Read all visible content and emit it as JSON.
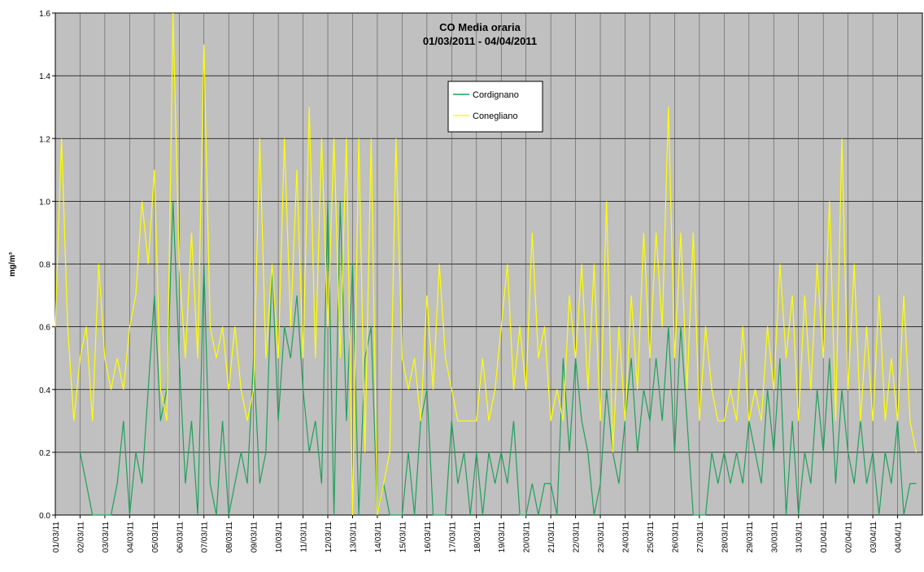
{
  "chart_data": {
    "type": "line",
    "title": "CO Media oraria",
    "subtitle": "01/03/2011 - 04/04/2011",
    "y_label": "mg/m³",
    "ylim": [
      0,
      1.6
    ],
    "yticks": [
      {
        "value": 0,
        "label": "0.0"
      },
      0.2,
      0.4,
      0.6,
      0.8,
      {
        "value": 1,
        "label": "1.0"
      },
      1.2,
      1.4,
      1.6
    ],
    "grid": true,
    "legend": "upper center",
    "background": "#c0c0c0",
    "categories": [
      "01/03/11",
      null,
      null,
      null,
      "02/03/11",
      null,
      null,
      null,
      "03/03/11",
      null,
      null,
      null,
      "04/03/11",
      null,
      null,
      null,
      "05/03/11",
      null,
      null,
      null,
      "06/03/11",
      null,
      null,
      null,
      "07/03/11",
      null,
      null,
      null,
      "08/03/11",
      null,
      null,
      null,
      "09/03/11",
      null,
      null,
      null,
      "10/03/11",
      null,
      null,
      null,
      "11/03/11",
      null,
      null,
      null,
      "12/03/11",
      null,
      null,
      null,
      "13/03/11",
      null,
      null,
      null,
      "14/03/11",
      null,
      null,
      null,
      "15/03/11",
      null,
      null,
      null,
      "16/03/11",
      null,
      null,
      null,
      "17/03/11",
      null,
      null,
      null,
      "18/03/11",
      null,
      null,
      null,
      "19/03/11",
      null,
      null,
      null,
      "20/03/11",
      null,
      null,
      null,
      "21/03/11",
      null,
      null,
      null,
      "22/03/11",
      null,
      null,
      null,
      "23/03/11",
      null,
      null,
      null,
      "24/03/11",
      null,
      null,
      null,
      "25/03/11",
      null,
      null,
      null,
      "26/03/11",
      null,
      null,
      null,
      "27/03/11",
      null,
      null,
      null,
      "28/03/11",
      null,
      null,
      null,
      "29/03/11",
      null,
      null,
      null,
      "30/03/11",
      null,
      null,
      null,
      "31/03/11",
      null,
      null,
      null,
      "01/04/11",
      null,
      null,
      null,
      "02/04/11",
      null,
      null,
      null,
      "03/04/11",
      null,
      null,
      null,
      "04/04/11",
      null,
      null,
      null
    ],
    "series": [
      {
        "name": "Cordignano",
        "color": "#1ea05a",
        "values": [
          null,
          null,
          null,
          null,
          0.2,
          0.1,
          0,
          0,
          0,
          0,
          0.1,
          0.3,
          0,
          0.2,
          0.1,
          0.4,
          0.7,
          0.3,
          0.4,
          1.0,
          0.5,
          0.1,
          0.3,
          0,
          0.8,
          0.1,
          0,
          0.3,
          0,
          0.1,
          0.2,
          0.1,
          0.5,
          0.1,
          0.2,
          0.8,
          0.3,
          0.6,
          0.5,
          0.7,
          0.4,
          0.2,
          0.3,
          0.1,
          1.0,
          0,
          1.0,
          0.3,
          0.8,
          0,
          0.5,
          0.6,
          0,
          0.1,
          0,
          0,
          0,
          0.2,
          0,
          0.3,
          0.4,
          0,
          0,
          0,
          0.3,
          0.1,
          0.2,
          0,
          0.2,
          0,
          0.2,
          0.1,
          0.2,
          0.1,
          0.3,
          0,
          0,
          0.1,
          0,
          0.1,
          0.1,
          0,
          0.5,
          0.2,
          0.5,
          0.3,
          0.2,
          0,
          0.1,
          0.4,
          0.2,
          0.1,
          0.3,
          0.5,
          0.2,
          0.4,
          0.3,
          0.5,
          0.3,
          0.6,
          0.2,
          0.6,
          0.3,
          0,
          0,
          0,
          0.2,
          0.1,
          0.2,
          0.1,
          0.2,
          0.1,
          0.3,
          0.2,
          0.1,
          0.4,
          0.2,
          0.5,
          0,
          0.3,
          0,
          0.2,
          0.1,
          0.4,
          0.2,
          0.5,
          0.1,
          0.4,
          0.2,
          0.1,
          0.3,
          0.1,
          0.2,
          0,
          0.2,
          0.1,
          0.3,
          0,
          0.1,
          0.1
        ]
      },
      {
        "name": "Conegliano",
        "color": "#ffff00",
        "values": [
          0.6,
          1.2,
          0.6,
          0.3,
          0.5,
          0.6,
          0.3,
          0.8,
          0.5,
          0.4,
          0.5,
          0.4,
          0.6,
          0.7,
          1.0,
          0.8,
          1.1,
          0.4,
          0.3,
          1.6,
          0.8,
          0.5,
          0.9,
          0.5,
          1.5,
          0.6,
          0.5,
          0.6,
          0.4,
          0.6,
          0.4,
          0.3,
          0.4,
          1.2,
          0.5,
          0.8,
          0.5,
          1.2,
          0.6,
          1.1,
          0.5,
          1.3,
          0.5,
          1.2,
          0.6,
          1.2,
          0.5,
          1.2,
          0,
          1.2,
          0.2,
          1.2,
          0,
          0.1,
          0.2,
          1.2,
          0.5,
          0.4,
          0.5,
          0.3,
          0.7,
          0.4,
          0.8,
          0.5,
          0.4,
          0.3,
          0.3,
          0.3,
          0.3,
          0.5,
          0.3,
          0.4,
          0.6,
          0.8,
          0.4,
          0.6,
          0.4,
          0.9,
          0.5,
          0.6,
          0.3,
          0.4,
          0.3,
          0.7,
          0.5,
          0.8,
          0.4,
          0.8,
          0.3,
          1.0,
          0.2,
          0.6,
          0.3,
          0.7,
          0.4,
          0.9,
          0.5,
          0.9,
          0.6,
          1.3,
          0.5,
          0.9,
          0.4,
          0.9,
          0.3,
          0.6,
          0.4,
          0.3,
          0.3,
          0.4,
          0.3,
          0.6,
          0.3,
          0.4,
          0.3,
          0.6,
          0.4,
          0.8,
          0.5,
          0.7,
          0.3,
          0.7,
          0.4,
          0.8,
          0.5,
          1.0,
          0.3,
          1.2,
          0.4,
          0.8,
          0.3,
          0.6,
          0.3,
          0.7,
          0.3,
          0.5,
          0.3,
          0.7,
          0.3,
          0.2
        ]
      }
    ]
  }
}
